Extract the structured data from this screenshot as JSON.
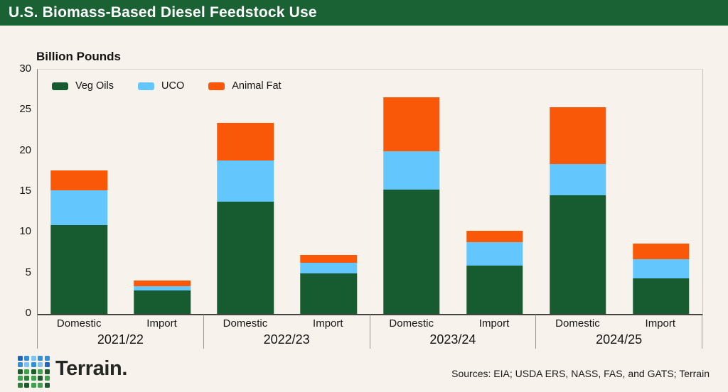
{
  "header": {
    "title": "U.S. Biomass-Based Diesel Feedstock Use",
    "bg_color": "#1A6133"
  },
  "chart_data": {
    "type": "bar",
    "stacked": true,
    "title": "U.S. Biomass-Based Diesel Feedstock Use",
    "ylabel": "Billion Pounds",
    "xlabel": "",
    "ylim": [
      0,
      30
    ],
    "yticks": [
      0,
      5,
      10,
      15,
      20,
      25,
      30
    ],
    "grid": false,
    "legend_position": "top-left-inside",
    "series_labels": [
      "Veg Oils",
      "UCO",
      "Animal Fat"
    ],
    "series_colors": [
      "#175C30",
      "#63C6FC",
      "#F95808"
    ],
    "groups": [
      {
        "year": "2021/22",
        "bars": [
          {
            "label": "Domestic",
            "values": [
              10.9,
              4.3,
              2.4
            ]
          },
          {
            "label": "Import",
            "values": [
              2.9,
              0.5,
              0.7
            ]
          }
        ]
      },
      {
        "year": "2022/23",
        "bars": [
          {
            "label": "Domestic",
            "values": [
              13.8,
              5.0,
              4.7
            ]
          },
          {
            "label": "Import",
            "values": [
              5.0,
              1.3,
              0.9
            ]
          }
        ]
      },
      {
        "year": "2023/24",
        "bars": [
          {
            "label": "Domestic",
            "values": [
              15.3,
              4.7,
              6.6
            ]
          },
          {
            "label": "Import",
            "values": [
              5.9,
              2.9,
              1.4
            ]
          }
        ]
      },
      {
        "year": "2024/25",
        "bars": [
          {
            "label": "Domestic",
            "values": [
              14.6,
              3.8,
              7.0
            ]
          },
          {
            "label": "Import",
            "values": [
              4.4,
              2.3,
              1.9
            ]
          }
        ]
      }
    ]
  },
  "footer": {
    "brand": "Terrain.",
    "sources": "Sources: EIA; USDA ERS, NASS, FAS, and GATS; Terrain",
    "logo": {
      "palette": {
        "b1": "#1E66B6",
        "b2": "#338FD6",
        "b3": "#7FC3EF",
        "g1": "#1C5A2D",
        "g2": "#3FA14B",
        "g3": "#2E7D3A"
      },
      "pattern": [
        "b1",
        "b2",
        "b3",
        "b2",
        "b2",
        "b2",
        "b3",
        "b2",
        "b3",
        "b1",
        "g1",
        "g2",
        "g1",
        "g2",
        "g1",
        "g2",
        "g3",
        "g2",
        "g1",
        "g2",
        "g3",
        "g1",
        "g2",
        "g2",
        "g1"
      ]
    }
  }
}
